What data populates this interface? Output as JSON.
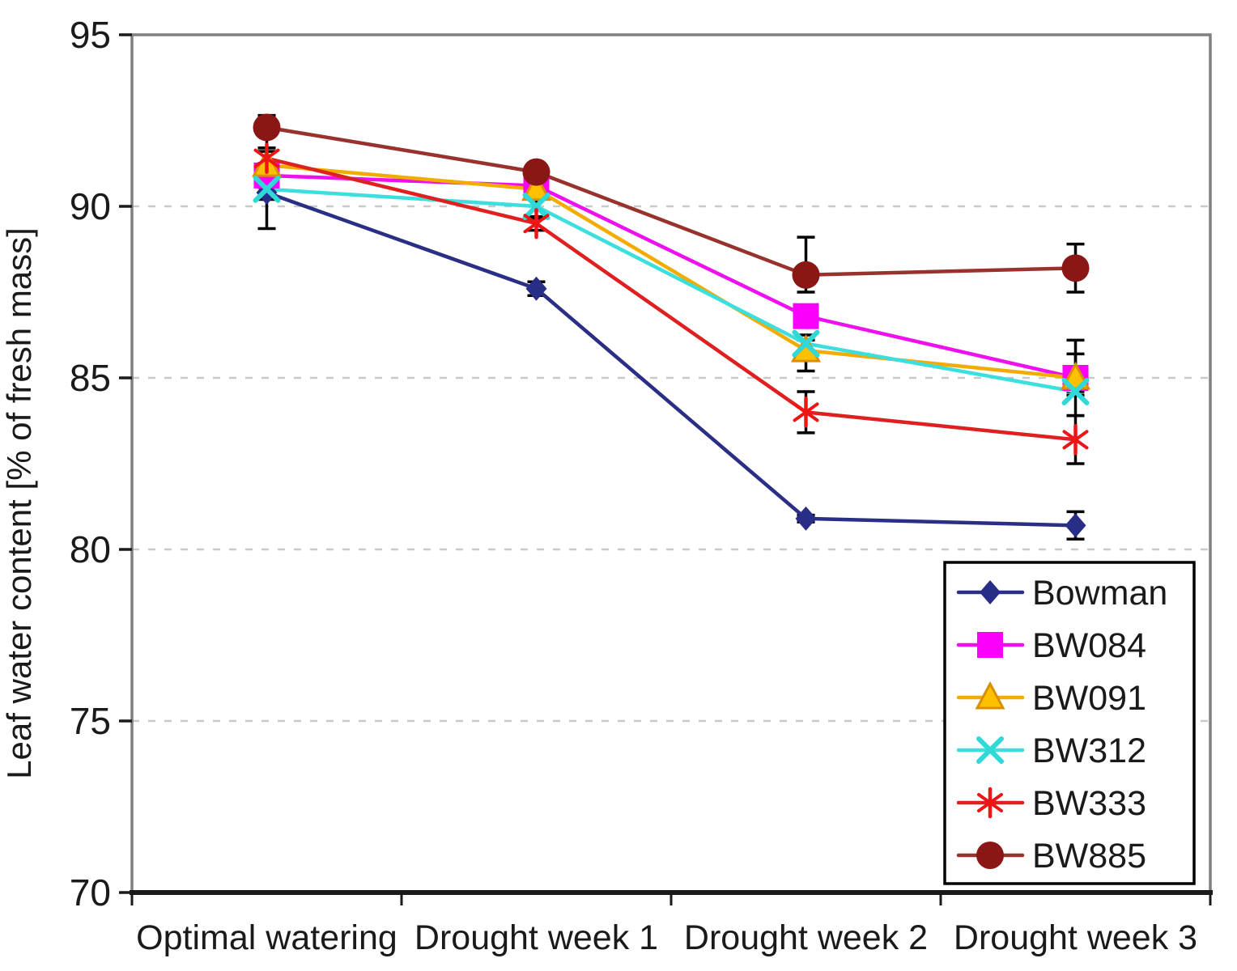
{
  "chart_data": {
    "type": "line",
    "title": "",
    "xlabel": "",
    "ylabel": "Leaf water content [% of fresh mass]",
    "categories": [
      "Optimal watering",
      "Drought week 1",
      "Drought week 2",
      "Drought week 3"
    ],
    "ylim": [
      70,
      95
    ],
    "yticks": [
      95,
      90,
      85,
      80,
      75,
      70
    ],
    "gridline_values": [
      90,
      85,
      80,
      75
    ],
    "grid": "horizontal-dashed",
    "legend_position": "inside-bottom-right",
    "legend_order": [
      "Bowman",
      "BW084",
      "BW091",
      "BW312",
      "BW333",
      "BW885"
    ],
    "colors": {
      "axis_border": "#808080",
      "bottom_axis": "#1a1a1a",
      "gridline": "#c9c9c9",
      "text": "#1a1a1a",
      "error_bar": "#000000",
      "legend_border": "#000000",
      "legend_bg": "#ffffff"
    },
    "series": [
      {
        "name": "Bowman",
        "marker": "diamond",
        "line_color": "#2a2f85",
        "marker_color": "#282e87",
        "values": [
          90.4,
          87.6,
          80.9,
          80.7
        ],
        "err_lo": [
          1.05,
          0.2,
          0.1,
          0.4
        ],
        "err_hi": [
          0.5,
          0.2,
          0.1,
          0.4
        ]
      },
      {
        "name": "BW084",
        "marker": "square",
        "line_color": "#ee10ee",
        "marker_color": "#fb00fb",
        "values": [
          90.9,
          90.6,
          86.8,
          85.0
        ],
        "err_lo": [
          0.35,
          0.2,
          0.3,
          0.5
        ],
        "err_hi": [
          0.35,
          0.2,
          0.3,
          1.1
        ]
      },
      {
        "name": "BW091",
        "marker": "triangle",
        "line_color": "#f2ac00",
        "marker_color": "#ffc000",
        "marker_stroke": "#d98f00",
        "values": [
          91.2,
          90.5,
          85.8,
          85.0
        ],
        "err_lo": [
          0.4,
          0.3,
          0.6,
          0.4
        ],
        "err_hi": [
          0.4,
          0.3,
          0.3,
          0.7
        ]
      },
      {
        "name": "BW312",
        "marker": "x",
        "line_color": "#3cdede",
        "marker_color": "#30d8d8",
        "values": [
          90.5,
          90.0,
          86.0,
          84.6
        ],
        "err_lo": [
          0.3,
          0.35,
          0.25,
          0.7
        ],
        "err_hi": [
          0.3,
          0.35,
          0.25,
          0.3
        ]
      },
      {
        "name": "BW333",
        "marker": "asterisk",
        "line_color": "#e02020",
        "marker_color": "#ee1515",
        "values": [
          91.4,
          89.5,
          84.0,
          83.2
        ],
        "err_lo": [
          0.3,
          0.2,
          0.6,
          0.7
        ],
        "err_hi": [
          0.3,
          0.2,
          0.6,
          0.7
        ]
      },
      {
        "name": "BW885",
        "marker": "circle",
        "line_color": "#97332c",
        "marker_color": "#8b1616",
        "values": [
          92.3,
          91.0,
          88.0,
          88.2
        ],
        "err_lo": [
          0.6,
          0.25,
          0.5,
          0.7
        ],
        "err_hi": [
          0.35,
          0.25,
          1.1,
          0.7
        ]
      }
    ]
  }
}
